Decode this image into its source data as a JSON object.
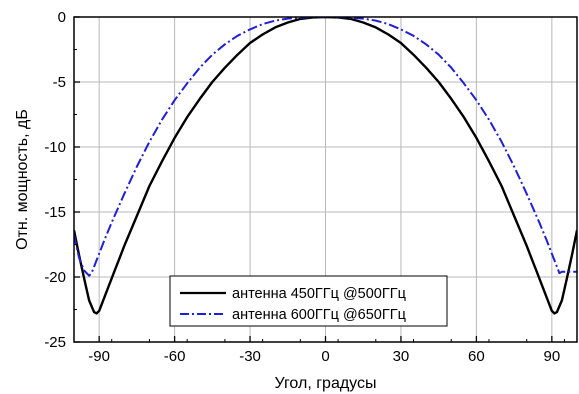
{
  "chart_data": {
    "type": "line",
    "xlabel": "Угол, градусы",
    "ylabel": "Отн. мощность, дБ",
    "xlim": [
      -100,
      100
    ],
    "ylim": [
      -25,
      0
    ],
    "xticks": [
      -90,
      -60,
      -30,
      0,
      30,
      60,
      90
    ],
    "yticks": [
      0,
      -5,
      -10,
      -15,
      -20,
      -25
    ],
    "grid": true,
    "legend_position": "bottom-center",
    "series": [
      {
        "name": "антенна 450ГГц @500ГГц",
        "color": "#000000",
        "style": "solid",
        "x": [
          -100,
          -98,
          -96,
          -94,
          -92,
          -91,
          -90,
          -88,
          -86,
          -84,
          -82,
          -80,
          -75,
          -70,
          -65,
          -60,
          -55,
          -50,
          -45,
          -40,
          -35,
          -30,
          -25,
          -20,
          -15,
          -10,
          -5,
          0,
          5,
          10,
          15,
          20,
          25,
          30,
          35,
          40,
          45,
          50,
          55,
          60,
          65,
          70,
          75,
          80,
          82,
          84,
          86,
          88,
          90,
          91,
          92,
          94,
          96,
          98,
          100
        ],
        "y": [
          -16.4,
          -18.3,
          -20.1,
          -21.8,
          -22.7,
          -22.8,
          -22.6,
          -21.6,
          -20.6,
          -19.6,
          -18.6,
          -17.6,
          -15.3,
          -13.0,
          -11.1,
          -9.3,
          -7.7,
          -6.3,
          -5.0,
          -3.9,
          -2.9,
          -2.0,
          -1.35,
          -0.8,
          -0.42,
          -0.15,
          -0.03,
          0.0,
          -0.03,
          -0.15,
          -0.42,
          -0.8,
          -1.35,
          -2.0,
          -2.9,
          -3.9,
          -5.0,
          -6.3,
          -7.7,
          -9.3,
          -11.1,
          -13.0,
          -15.3,
          -17.6,
          -18.6,
          -19.6,
          -20.6,
          -21.6,
          -22.6,
          -22.8,
          -22.7,
          -21.8,
          -20.1,
          -18.3,
          -16.4
        ]
      },
      {
        "name": "антенна 600ГГц @650ГГц",
        "color": "#1f1fd6",
        "style": "dash-dot",
        "x": [
          -100,
          -98,
          -96,
          -94,
          -93,
          -92,
          -90,
          -88,
          -85,
          -80,
          -75,
          -70,
          -65,
          -60,
          -55,
          -50,
          -45,
          -40,
          -35,
          -30,
          -25,
          -20,
          -15,
          -10,
          -5,
          0,
          5,
          10,
          15,
          20,
          25,
          30,
          35,
          40,
          45,
          50,
          55,
          60,
          65,
          70,
          75,
          80,
          85,
          88,
          90,
          92,
          93,
          94,
          96,
          98,
          100
        ],
        "y": [
          -16.8,
          -18.5,
          -19.5,
          -19.9,
          -19.7,
          -19.2,
          -18.2,
          -17.2,
          -15.8,
          -13.6,
          -11.5,
          -9.6,
          -7.9,
          -6.4,
          -5.1,
          -3.9,
          -2.9,
          -2.1,
          -1.45,
          -0.95,
          -0.55,
          -0.28,
          -0.12,
          -0.05,
          -0.01,
          0.0,
          -0.01,
          -0.05,
          -0.12,
          -0.28,
          -0.55,
          -0.95,
          -1.45,
          -2.1,
          -2.9,
          -3.9,
          -5.1,
          -6.4,
          -7.9,
          -9.6,
          -11.5,
          -13.6,
          -15.8,
          -17.2,
          -18.2,
          -19.2,
          -19.7,
          -19.6,
          -19.6,
          -19.6,
          -19.6
        ]
      }
    ]
  }
}
